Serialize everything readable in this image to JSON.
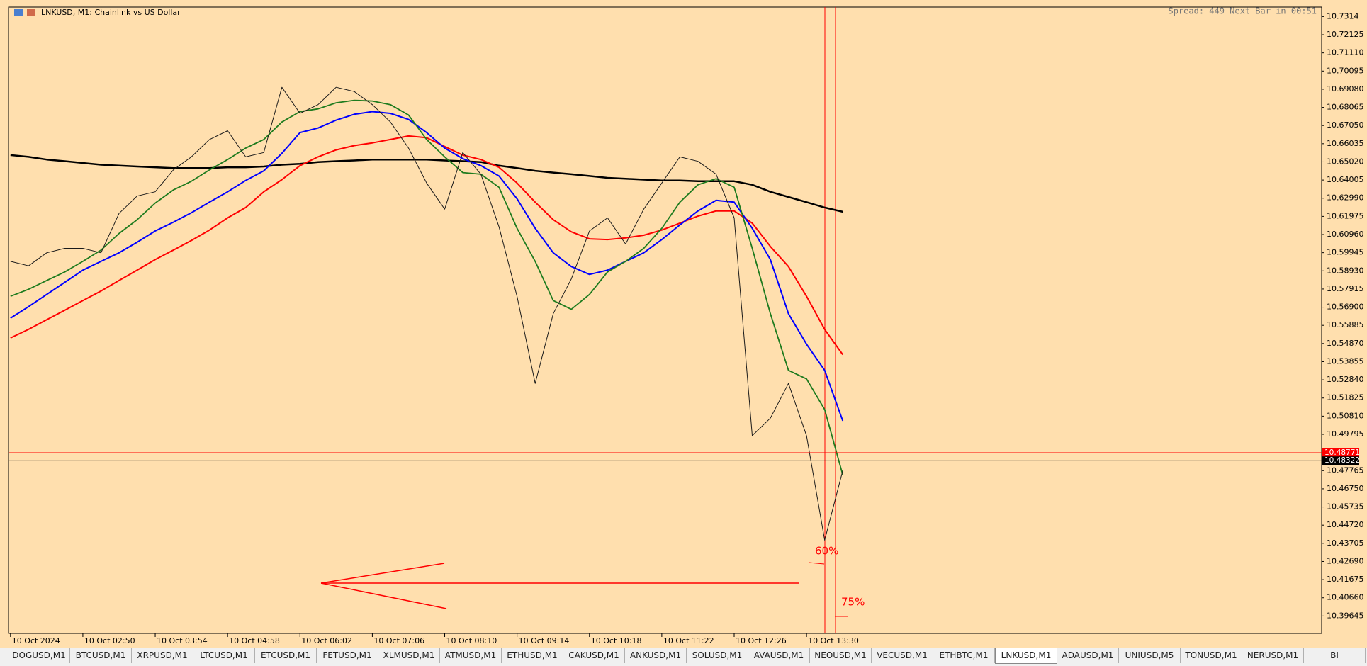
{
  "header": {
    "title": "LNKUSD, M1:  Chainlink vs US Dollar",
    "status": "Spread: 449 Next Bar in 00:51"
  },
  "chart_data": {
    "type": "line",
    "categories": [
      "10 Oct 2024",
      null,
      null,
      null,
      "10 Oct 02:50",
      null,
      null,
      null,
      "10 Oct 03:54",
      null,
      null,
      null,
      "10 Oct 04:58",
      null,
      null,
      null,
      "10 Oct 06:02",
      null,
      null,
      null,
      "10 Oct 07:06",
      null,
      null,
      null,
      "10 Oct 08:10",
      null,
      null,
      null,
      "10 Oct 09:14",
      null,
      null,
      null,
      "10 Oct 10:18",
      null,
      null,
      null,
      "10 Oct 11:22",
      null,
      null,
      null,
      "10 Oct 12:26",
      null,
      null,
      null,
      "10 Oct 13:30",
      null,
      null
    ],
    "series": [
      {
        "color": "#000000",
        "width": 2.5,
        "values": [
          10.654,
          10.653,
          10.6515,
          10.6506,
          10.6496,
          10.6486,
          10.6481,
          10.6476,
          10.6472,
          10.6467,
          10.6467,
          10.6467,
          10.6472,
          10.6472,
          10.6476,
          10.6486,
          10.6491,
          10.6501,
          10.6506,
          10.651,
          10.6515,
          10.6515,
          10.6515,
          10.6515,
          10.651,
          10.6506,
          10.6501,
          10.6481,
          10.6467,
          10.6452,
          10.6442,
          10.6433,
          10.6423,
          10.6413,
          10.6408,
          10.6403,
          10.6398,
          10.6398,
          10.6394,
          10.6394,
          10.6394,
          10.6374,
          10.6335,
          10.6306,
          10.6277,
          10.6247,
          10.6223
        ]
      },
      {
        "color": "#ff0000",
        "width": 2,
        "values": [
          10.5518,
          10.5566,
          10.562,
          10.5673,
          10.5727,
          10.578,
          10.5839,
          10.5897,
          10.5956,
          10.6009,
          10.6063,
          10.6121,
          10.6189,
          10.6247,
          10.6335,
          10.6403,
          10.6481,
          10.653,
          10.6569,
          10.6593,
          10.6608,
          10.6627,
          10.6647,
          10.6637,
          10.6588,
          10.654,
          10.6515,
          10.6472,
          10.6384,
          10.6277,
          10.6179,
          10.6111,
          10.6072,
          10.6068,
          10.6077,
          10.6092,
          10.6121,
          10.616,
          10.6199,
          10.6228,
          10.6228,
          10.616,
          10.6029,
          10.5917,
          10.5751,
          10.5566,
          10.5425
        ]
      },
      {
        "color": "#0000ff",
        "width": 2,
        "values": [
          10.5629,
          10.5693,
          10.5761,
          10.5829,
          10.5897,
          10.5946,
          10.5994,
          10.6053,
          10.6116,
          10.6165,
          10.6218,
          10.6277,
          10.6335,
          10.6398,
          10.6452,
          10.655,
          10.6666,
          10.6691,
          10.6735,
          10.6768,
          10.6783,
          10.6773,
          10.6739,
          10.6666,
          10.6579,
          10.652,
          10.6481,
          10.6423,
          10.6296,
          10.6131,
          10.5994,
          10.5917,
          10.5873,
          10.5897,
          10.5946,
          10.5994,
          10.6068,
          10.615,
          10.6228,
          10.6287,
          10.6277,
          10.6131,
          10.5956,
          10.5654,
          10.5483,
          10.5337,
          10.5055
        ]
      },
      {
        "color": "#1e7b1e",
        "width": 1.8,
        "values": [
          10.5751,
          10.579,
          10.5839,
          10.5887,
          10.5946,
          10.6009,
          10.6102,
          10.6179,
          10.6272,
          10.6345,
          10.6394,
          10.6457,
          10.6515,
          10.6579,
          10.6627,
          10.6725,
          10.6783,
          10.6798,
          10.6832,
          10.6846,
          10.6842,
          10.6822,
          10.6764,
          10.6627,
          10.653,
          10.6442,
          10.6433,
          10.636,
          10.6131,
          10.5946,
          10.5727,
          10.5678,
          10.5761,
          10.5887,
          10.5946,
          10.6019,
          10.6131,
          10.6277,
          10.6374,
          10.6408,
          10.636,
          10.6019,
          10.5654,
          10.5337,
          10.5289,
          10.5118,
          10.4753
        ]
      },
      {
        "color": "#1a1a1a",
        "width": 1,
        "values": [
          10.5946,
          10.5921,
          10.5994,
          10.6019,
          10.6019,
          10.5994,
          10.6214,
          10.6311,
          10.6335,
          10.6457,
          10.653,
          10.6627,
          10.6676,
          10.653,
          10.6554,
          10.6919,
          10.6773,
          10.6822,
          10.6919,
          10.6895,
          10.6822,
          10.6725,
          10.6579,
          10.6384,
          10.6238,
          10.6554,
          10.6433,
          10.614,
          10.5751,
          10.5264,
          10.5654,
          10.5848,
          10.6116,
          10.6189,
          10.6043,
          10.6238,
          10.6384,
          10.653,
          10.6505,
          10.6433,
          10.6189,
          10.4972,
          10.507,
          10.5264,
          10.4972,
          10.4388,
          10.4777
        ]
      }
    ],
    "ylim": [
      10.3867,
      10.7367
    ],
    "yticks": [
      10.39645,
      {
        "value": 10.4066,
        "label": "10.40660"
      },
      10.41675,
      {
        "value": 10.4269,
        "label": "10.42690"
      },
      10.43705,
      {
        "value": 10.4472,
        "label": "10.44720"
      },
      10.45735,
      {
        "value": 10.4675,
        "label": "10.46750"
      },
      10.47765,
      10.49795,
      {
        "value": 10.5081,
        "label": "10.50810"
      },
      10.51825,
      {
        "value": 10.5284,
        "label": "10.52840"
      },
      10.53855,
      {
        "value": 10.5487,
        "label": "10.54870"
      },
      10.55885,
      {
        "value": 10.569,
        "label": "10.56900"
      },
      10.57915,
      {
        "value": 10.5893,
        "label": "10.58930"
      },
      10.59945,
      {
        "value": 10.6096,
        "label": "10.60960"
      },
      10.61975,
      {
        "value": 10.6299,
        "label": "10.62990"
      },
      10.64005,
      {
        "value": 10.6502,
        "label": "10.65020"
      },
      10.66035,
      {
        "value": 10.6705,
        "label": "10.67050"
      },
      10.68065,
      {
        "value": 10.6908,
        "label": "10.69080"
      },
      10.70095,
      {
        "value": 10.7111,
        "label": "10.71110"
      },
      10.72125,
      10.7314
    ],
    "price_lines": [
      {
        "value": 10.48771,
        "color": "#ff0000"
      },
      {
        "value": 10.48322,
        "color": "#000000"
      }
    ],
    "annotations": [
      {
        "text": "60%"
      },
      {
        "text": "75%"
      }
    ]
  },
  "tabs": [
    {
      "label": "DOGUSD,M1"
    },
    {
      "label": "BTCUSD,M1"
    },
    {
      "label": "XRPUSD,M1"
    },
    {
      "label": "LTCUSD,M1"
    },
    {
      "label": "ETCUSD,M1"
    },
    {
      "label": "FETUSD,M1"
    },
    {
      "label": "XLMUSD,M1"
    },
    {
      "label": "ATMUSD,M1"
    },
    {
      "label": "ETHUSD,M1"
    },
    {
      "label": "CAKUSD,M1"
    },
    {
      "label": "ANKUSD,M1"
    },
    {
      "label": "SOLUSD,M1"
    },
    {
      "label": "AVAUSD,M1"
    },
    {
      "label": "NEOUSD,M1"
    },
    {
      "label": "VECUSD,M1"
    },
    {
      "label": "ETHBTC,M1"
    },
    {
      "label": "LNKUSD,M1",
      "active": true
    },
    {
      "label": "ADAUSD,M1"
    },
    {
      "label": "UNIUSD,M5"
    },
    {
      "label": "TONUSD,M1"
    },
    {
      "label": "NERUSD,M1"
    },
    {
      "label": "BI"
    }
  ]
}
